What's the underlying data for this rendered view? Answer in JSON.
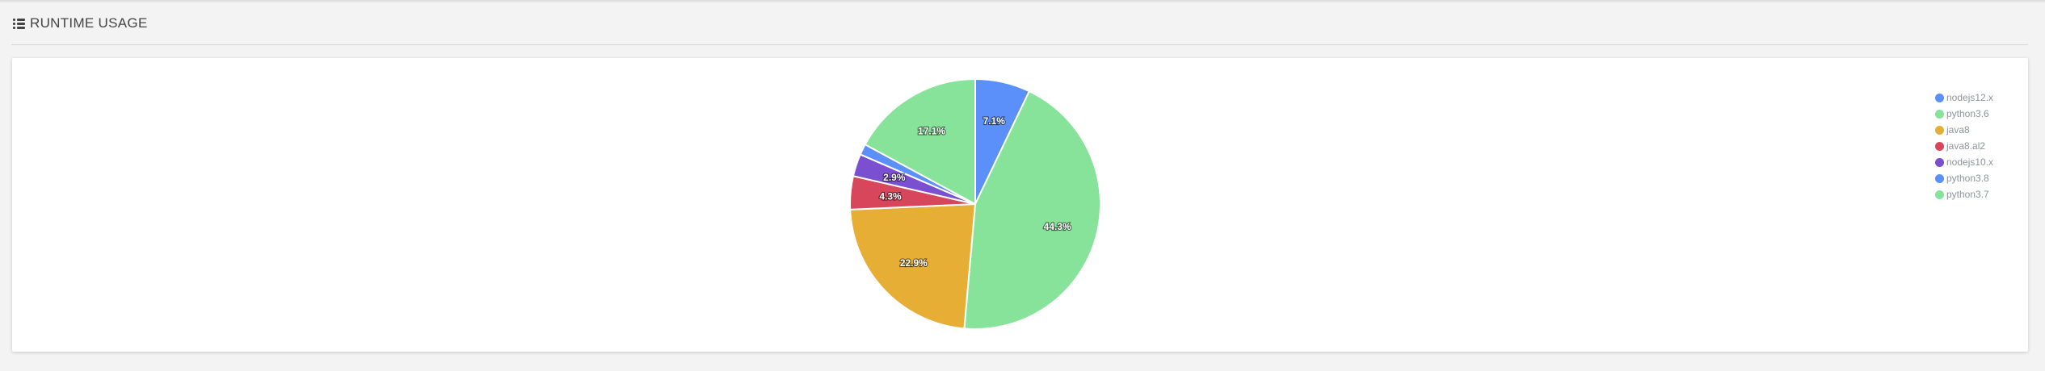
{
  "section": {
    "title": "RUNTIME USAGE",
    "icon": "list-icon"
  },
  "chart_data": {
    "type": "pie",
    "title": "",
    "label_format": "percent",
    "slices": [
      {
        "name": "nodejs12.x",
        "value": 7.1,
        "label": "7.1%",
        "color": "#5b8ff9"
      },
      {
        "name": "python3.6",
        "value": 44.3,
        "label": "44.3%",
        "color": "#87e29a"
      },
      {
        "name": "java8",
        "value": 22.9,
        "label": "22.9%",
        "color": "#e6ae34"
      },
      {
        "name": "java8.al2",
        "value": 4.3,
        "label": "4.3%",
        "color": "#d7465a"
      },
      {
        "name": "nodejs10.x",
        "value": 2.9,
        "label": "2.9%",
        "color": "#7a4fd0"
      },
      {
        "name": "python3.8",
        "value": 1.4,
        "label": "",
        "color": "#5b8ff9"
      },
      {
        "name": "python3.7",
        "value": 17.1,
        "label": "17.1%",
        "color": "#87e29a"
      }
    ],
    "legend": {
      "position": "top-right",
      "items": [
        "nodejs12.x",
        "python3.6",
        "java8",
        "java8.al2",
        "nodejs10.x",
        "python3.8",
        "python3.7"
      ]
    }
  }
}
